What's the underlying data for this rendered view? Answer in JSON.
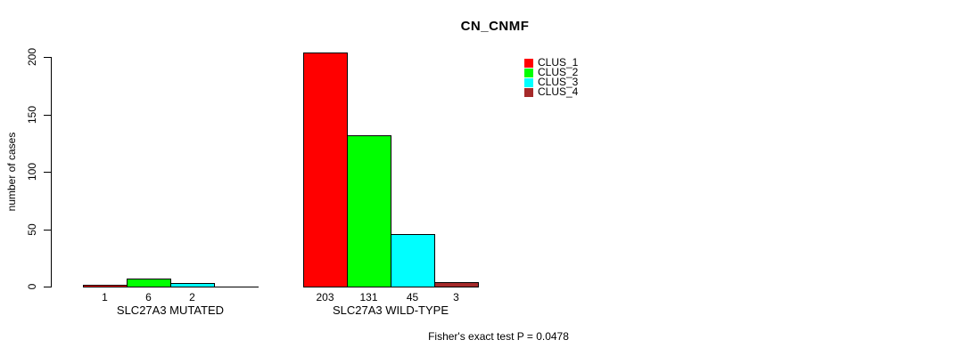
{
  "chart_data": {
    "type": "bar",
    "title": "CN_CNMF",
    "ylabel": "number of cases",
    "xlabel": "",
    "ylim": [
      0,
      200
    ],
    "yticks": [
      0,
      50,
      100,
      150,
      200
    ],
    "grid": false,
    "legend_position": "top-right",
    "categories": [
      "SLC27A3 MUTATED",
      "SLC27A3 WILD-TYPE"
    ],
    "series": [
      {
        "name": "CLUS_1",
        "color": "#ff0000",
        "values": [
          1,
          203
        ]
      },
      {
        "name": "CLUS_2",
        "color": "#00ff00",
        "values": [
          6,
          131
        ]
      },
      {
        "name": "CLUS_3",
        "color": "#00ffff",
        "values": [
          2,
          45
        ]
      },
      {
        "name": "CLUS_4",
        "color": "#a52a2a",
        "values": [
          0,
          3
        ]
      }
    ],
    "bar_value_labels": [
      [
        "1",
        "6",
        "2",
        ""
      ],
      [
        "203",
        "131",
        "45",
        "3"
      ]
    ],
    "annotation": "Fisher's exact test P = 0.0478"
  }
}
